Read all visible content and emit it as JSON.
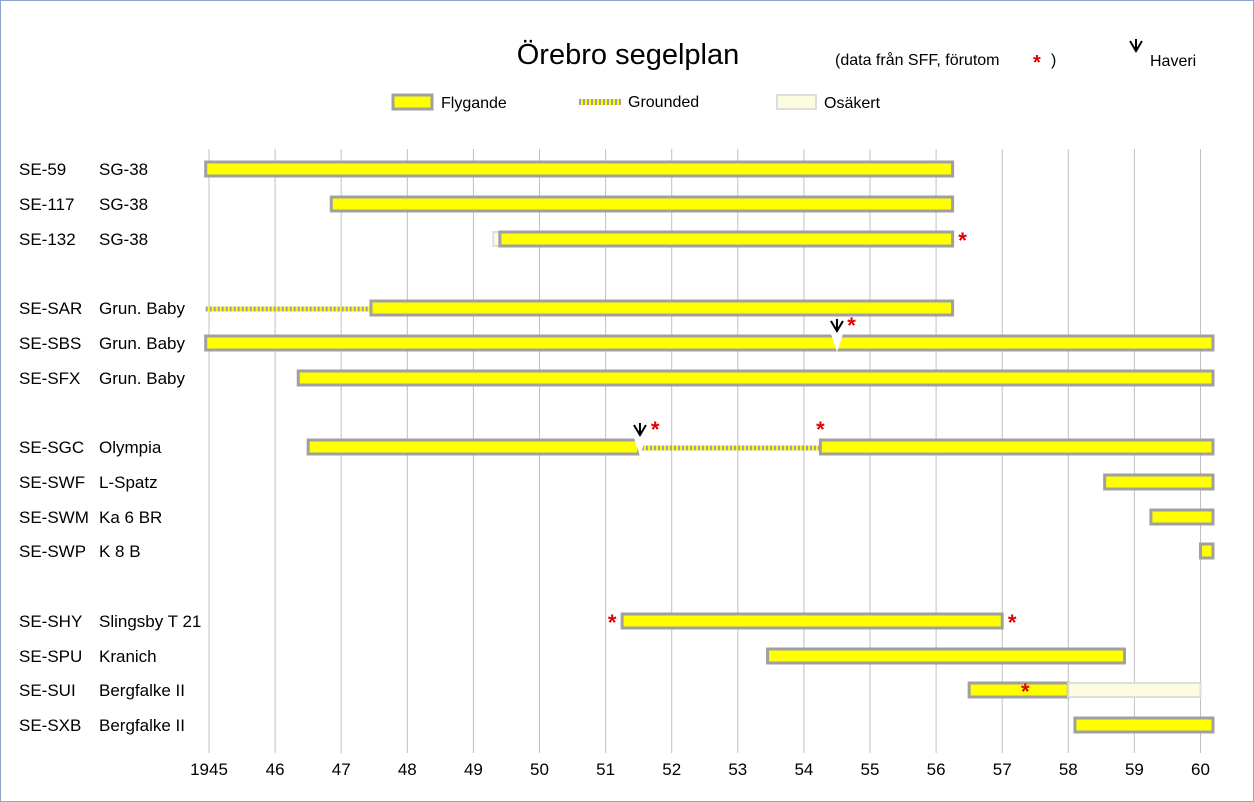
{
  "chart_data": {
    "type": "gantt",
    "title": "Örebro segelplan",
    "subtitle": "(data från SFF, förutom",
    "subtitle_end": ")",
    "haveri_label": "Haveri",
    "legend": [
      {
        "key": "flying",
        "label": "Flygande"
      },
      {
        "key": "grounded",
        "label": "Grounded"
      },
      {
        "key": "uncertain",
        "label": "Osäkert"
      }
    ],
    "x_ticks": [
      {
        "value": 1945,
        "label": "1945"
      },
      {
        "value": 1946,
        "label": "46"
      },
      {
        "value": 1947,
        "label": "47"
      },
      {
        "value": 1948,
        "label": "48"
      },
      {
        "value": 1949,
        "label": "49"
      },
      {
        "value": 1950,
        "label": "50"
      },
      {
        "value": 1951,
        "label": "51"
      },
      {
        "value": 1952,
        "label": "52"
      },
      {
        "value": 1953,
        "label": "53"
      },
      {
        "value": 1954,
        "label": "54"
      },
      {
        "value": 1955,
        "label": "55"
      },
      {
        "value": 1956,
        "label": "56"
      },
      {
        "value": 1957,
        "label": "57"
      },
      {
        "value": 1958,
        "label": "58"
      },
      {
        "value": 1959,
        "label": "59"
      },
      {
        "value": 1960,
        "label": "60"
      }
    ],
    "xlim": [
      1945,
      1960.2
    ],
    "rows": [
      {
        "reg": "SE-59",
        "type": "SG-38",
        "segments": [
          {
            "kind": "flying",
            "start": 1944.95,
            "end": 1956.25
          }
        ],
        "asterisks": [],
        "crashes": []
      },
      {
        "reg": "SE-117",
        "type": "SG-38",
        "segments": [
          {
            "kind": "flying",
            "start": 1946.85,
            "end": 1956.25
          }
        ],
        "asterisks": [],
        "crashes": []
      },
      {
        "reg": "SE-132",
        "type": "SG-38",
        "segments": [
          {
            "kind": "uncertain",
            "start": 1949.3,
            "end": 1949.4
          },
          {
            "kind": "flying",
            "start": 1949.4,
            "end": 1956.25
          }
        ],
        "asterisks": [
          1956.4
        ],
        "crashes": []
      },
      {
        "reg": "SE-SAR",
        "type": "Grun. Baby",
        "segments": [
          {
            "kind": "grounded",
            "start": 1944.95,
            "end": 1947.45
          },
          {
            "kind": "flying",
            "start": 1947.45,
            "end": 1956.25
          }
        ],
        "asterisks": [],
        "crashes": []
      },
      {
        "reg": "SE-SBS",
        "type": "Grun. Baby",
        "segments": [
          {
            "kind": "flying",
            "start": 1944.95,
            "end": 1960.2
          }
        ],
        "asterisks": [
          1954.72
        ],
        "crashes": [
          1954.5
        ]
      },
      {
        "reg": "SE-SFX",
        "type": "Grun. Baby",
        "segments": [
          {
            "kind": "flying",
            "start": 1946.35,
            "end": 1960.2
          }
        ],
        "asterisks": [],
        "crashes": []
      },
      {
        "reg": "SE-SGC",
        "type": "Olympia",
        "segments": [
          {
            "kind": "flying",
            "start": 1946.5,
            "end": 1951.5
          },
          {
            "kind": "grounded",
            "start": 1951.55,
            "end": 1954.25
          },
          {
            "kind": "flying",
            "start": 1954.25,
            "end": 1960.2
          }
        ],
        "asterisks": [
          1951.75,
          1954.25
        ],
        "crashes": [
          1951.52
        ]
      },
      {
        "reg": "SE-SWF",
        "type": "L-Spatz",
        "segments": [
          {
            "kind": "flying",
            "start": 1958.55,
            "end": 1960.2
          }
        ],
        "asterisks": [],
        "crashes": []
      },
      {
        "reg": "SE-SWM",
        "type": "Ka 6 BR",
        "segments": [
          {
            "kind": "flying",
            "start": 1959.25,
            "end": 1960.2
          }
        ],
        "asterisks": [],
        "crashes": []
      },
      {
        "reg": "SE-SWP",
        "type": "K 8 B",
        "segments": [
          {
            "kind": "flying",
            "start": 1960.0,
            "end": 1960.2
          }
        ],
        "asterisks": [],
        "crashes": []
      },
      {
        "reg": "SE-SHY",
        "type": "Slingsby T 21",
        "segments": [
          {
            "kind": "flying",
            "start": 1951.25,
            "end": 1957.0
          }
        ],
        "asterisks": [
          1951.1,
          1957.15
        ],
        "crashes": []
      },
      {
        "reg": "SE-SPU",
        "type": "Kranich",
        "segments": [
          {
            "kind": "flying",
            "start": 1953.45,
            "end": 1958.85
          }
        ],
        "asterisks": [],
        "crashes": []
      },
      {
        "reg": "SE-SUI",
        "type": "Bergfalke II",
        "segments": [
          {
            "kind": "flying",
            "start": 1956.5,
            "end": 1958.0
          },
          {
            "kind": "uncertain",
            "start": 1958.0,
            "end": 1960.0
          }
        ],
        "asterisks": [
          1957.35
        ],
        "crashes": []
      },
      {
        "reg": "SE-SXB",
        "type": "Bergfalke II",
        "segments": [
          {
            "kind": "flying",
            "start": 1958.1,
            "end": 1960.2
          }
        ],
        "asterisks": [],
        "crashes": []
      }
    ],
    "colors": {
      "flying": "#ffff00",
      "border": "#a0a0a0",
      "uncertain": "#fdfbe0",
      "uncertain_border": "#dedede",
      "grid": "#c0c0c0",
      "asterisk": "#e00000"
    }
  }
}
